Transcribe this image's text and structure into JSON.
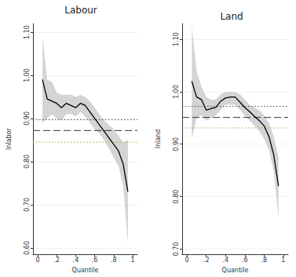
{
  "chart_data": [
    {
      "type": "line",
      "title": "Labour",
      "x_label": "Quantile",
      "y_label": "lnlabor",
      "x": [
        0.05,
        0.1,
        0.15,
        0.2,
        0.25,
        0.3,
        0.35,
        0.4,
        0.45,
        0.5,
        0.55,
        0.6,
        0.65,
        0.7,
        0.75,
        0.8,
        0.85,
        0.9,
        0.95
      ],
      "values": [
        0.99,
        0.945,
        0.94,
        0.935,
        0.925,
        0.935,
        0.93,
        0.925,
        0.935,
        0.93,
        0.915,
        0.9,
        0.885,
        0.87,
        0.855,
        0.84,
        0.825,
        0.795,
        0.73
      ],
      "band": {
        "lower": [
          0.89,
          0.9,
          0.91,
          0.9,
          0.895,
          0.91,
          0.91,
          0.905,
          0.915,
          0.905,
          0.89,
          0.875,
          0.865,
          0.85,
          0.83,
          0.81,
          0.79,
          0.745,
          0.61
        ],
        "upper": [
          1.09,
          0.99,
          0.985,
          0.96,
          0.955,
          0.955,
          0.955,
          0.95,
          0.955,
          0.95,
          0.94,
          0.925,
          0.91,
          0.895,
          0.885,
          0.875,
          0.86,
          0.845,
          0.85
        ]
      },
      "ols": 0.872,
      "ols_ci": [
        0.845,
        0.897
      ],
      "color": "#000000",
      "grid": true,
      "xlim": [
        -0.05,
        1.05
      ],
      "xticks": [
        0,
        {
          "value": 0.2,
          "label": ".2"
        },
        {
          "value": 0.4,
          "label": ".4"
        },
        {
          "value": 0.6,
          "label": ".6"
        },
        {
          "value": 0.8,
          "label": ".8"
        },
        1
      ],
      "ylim": [
        0.585,
        1.12
      ],
      "yticks": [
        {
          "value": 0.6,
          "label": "0.60"
        },
        {
          "value": 0.7,
          "label": "0.70"
        },
        {
          "value": 0.8,
          "label": "0.80"
        },
        {
          "value": 0.9,
          "label": "0.90"
        },
        {
          "value": 1.0,
          "label": "1.00"
        },
        {
          "value": 1.1,
          "label": "1.10"
        }
      ]
    },
    {
      "type": "line",
      "title": "Land",
      "x_label": "Quantile",
      "y_label": "lnland",
      "x": [
        0.05,
        0.1,
        0.15,
        0.2,
        0.25,
        0.3,
        0.35,
        0.4,
        0.45,
        0.5,
        0.55,
        0.6,
        0.65,
        0.7,
        0.75,
        0.8,
        0.85,
        0.9,
        0.95
      ],
      "values": [
        1.02,
        0.99,
        0.985,
        0.965,
        0.968,
        0.97,
        0.982,
        0.988,
        0.99,
        0.99,
        0.98,
        0.97,
        0.962,
        0.953,
        0.945,
        0.935,
        0.915,
        0.88,
        0.82
      ],
      "band": {
        "lower": [
          0.91,
          0.95,
          0.955,
          0.945,
          0.95,
          0.955,
          0.965,
          0.975,
          0.975,
          0.975,
          0.965,
          0.955,
          0.945,
          0.935,
          0.925,
          0.91,
          0.89,
          0.85,
          0.76
        ],
        "upper": [
          1.125,
          1.04,
          1.01,
          0.99,
          0.985,
          0.985,
          0.995,
          1.0,
          1.0,
          1.0,
          0.995,
          0.985,
          0.975,
          0.97,
          0.965,
          0.955,
          0.94,
          0.915,
          0.875
        ]
      },
      "ols": 0.951,
      "ols_ci": [
        0.931,
        0.972
      ],
      "color": "#000000",
      "grid": true,
      "xlim": [
        -0.05,
        1.05
      ],
      "xticks": [
        0,
        {
          "value": 0.2,
          "label": ".2"
        },
        {
          "value": 0.4,
          "label": ".4"
        },
        {
          "value": 0.6,
          "label": ".6"
        },
        {
          "value": 0.8,
          "label": ".8"
        },
        1
      ],
      "ylim": [
        0.69,
        1.13
      ],
      "yticks": [
        {
          "value": 0.7,
          "label": "0.70"
        },
        {
          "value": 0.8,
          "label": "0.80"
        },
        {
          "value": 0.9,
          "label": "0.90"
        },
        {
          "value": 1.0,
          "label": "1.00"
        },
        {
          "value": 1.1,
          "label": "1.10"
        }
      ]
    }
  ]
}
